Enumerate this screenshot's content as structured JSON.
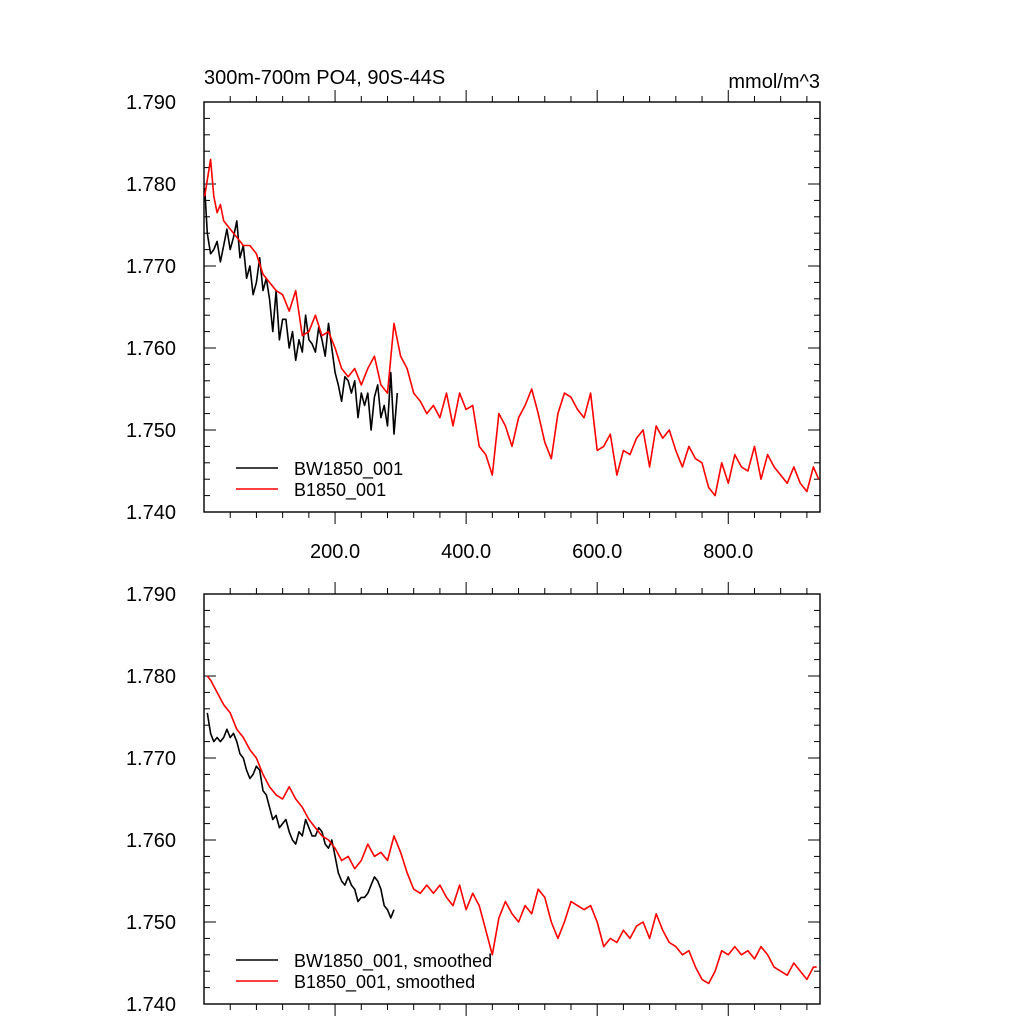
{
  "header": {
    "title_left": "300m-700m PO4, 90S-44S",
    "title_right": "mmol/m^3"
  },
  "chart_data": [
    {
      "type": "line",
      "xlim": [
        0,
        940
      ],
      "ylim": [
        1.74,
        1.79
      ],
      "y_ticks": [
        "1.790",
        "1.780",
        "1.770",
        "1.760",
        "1.750",
        "1.740"
      ],
      "x_ticks": [
        "200.0",
        "400.0",
        "600.0",
        "800.0"
      ],
      "legend_position": "bottom-left",
      "series": [
        {
          "name": "BW1850_001",
          "color": "#000000",
          "x": [
            1,
            5,
            10,
            15,
            20,
            25,
            30,
            35,
            40,
            45,
            50,
            55,
            60,
            65,
            70,
            75,
            80,
            85,
            90,
            95,
            100,
            105,
            110,
            115,
            120,
            125,
            130,
            135,
            140,
            145,
            150,
            155,
            160,
            165,
            170,
            175,
            180,
            185,
            190,
            195,
            200,
            205,
            210,
            215,
            220,
            225,
            230,
            235,
            240,
            245,
            250,
            255,
            260,
            265,
            270,
            275,
            280,
            285,
            290,
            295
          ],
          "y": [
            1.7795,
            1.774,
            1.7715,
            1.772,
            1.773,
            1.7705,
            1.7725,
            1.7745,
            1.772,
            1.7735,
            1.7755,
            1.771,
            1.7725,
            1.7685,
            1.77,
            1.7665,
            1.768,
            1.771,
            1.767,
            1.7685,
            1.766,
            1.762,
            1.767,
            1.761,
            1.7635,
            1.7635,
            1.76,
            1.762,
            1.7585,
            1.761,
            1.7595,
            1.764,
            1.761,
            1.7605,
            1.7595,
            1.7625,
            1.761,
            1.759,
            1.763,
            1.76,
            1.757,
            1.7555,
            1.7535,
            1.7565,
            1.756,
            1.7545,
            1.756,
            1.7515,
            1.7545,
            1.753,
            1.7545,
            1.75,
            1.754,
            1.7555,
            1.7515,
            1.753,
            1.7505,
            1.757,
            1.7495,
            1.7545
          ]
        },
        {
          "name": "B1850_001",
          "color": "#ff0000",
          "x": [
            1,
            5,
            10,
            15,
            20,
            25,
            30,
            40,
            50,
            60,
            70,
            80,
            90,
            100,
            110,
            120,
            130,
            140,
            150,
            160,
            170,
            180,
            190,
            200,
            210,
            220,
            230,
            240,
            250,
            260,
            270,
            280,
            290,
            300,
            310,
            320,
            330,
            340,
            350,
            360,
            370,
            380,
            390,
            400,
            410,
            420,
            430,
            440,
            450,
            460,
            470,
            480,
            490,
            500,
            510,
            520,
            530,
            540,
            550,
            560,
            570,
            580,
            590,
            600,
            610,
            620,
            630,
            640,
            650,
            660,
            670,
            680,
            690,
            700,
            710,
            720,
            730,
            740,
            750,
            760,
            770,
            780,
            790,
            800,
            810,
            820,
            830,
            840,
            850,
            860,
            870,
            880,
            890,
            900,
            910,
            920,
            930,
            938
          ],
          "y": [
            1.7785,
            1.7805,
            1.783,
            1.7785,
            1.7765,
            1.7775,
            1.7755,
            1.7745,
            1.7735,
            1.7725,
            1.7725,
            1.7715,
            1.769,
            1.768,
            1.767,
            1.7665,
            1.7645,
            1.767,
            1.7615,
            1.762,
            1.764,
            1.7615,
            1.762,
            1.76,
            1.7575,
            1.7565,
            1.7575,
            1.7555,
            1.7575,
            1.759,
            1.7555,
            1.7545,
            1.763,
            1.759,
            1.7575,
            1.7545,
            1.7535,
            1.752,
            1.753,
            1.7515,
            1.7545,
            1.7505,
            1.7545,
            1.7525,
            1.753,
            1.748,
            1.747,
            1.7445,
            1.752,
            1.7505,
            1.748,
            1.7515,
            1.753,
            1.755,
            1.752,
            1.7485,
            1.7465,
            1.752,
            1.7545,
            1.754,
            1.7525,
            1.7515,
            1.7545,
            1.7475,
            1.748,
            1.7495,
            1.7445,
            1.7475,
            1.747,
            1.749,
            1.75,
            1.7455,
            1.7505,
            1.749,
            1.75,
            1.7475,
            1.7455,
            1.748,
            1.7465,
            1.746,
            1.743,
            1.742,
            1.746,
            1.7435,
            1.747,
            1.7455,
            1.745,
            1.748,
            1.744,
            1.747,
            1.7455,
            1.7445,
            1.7435,
            1.7455,
            1.7435,
            1.7425,
            1.7455,
            1.744
          ]
        }
      ]
    },
    {
      "type": "line",
      "xlim": [
        0,
        940
      ],
      "ylim": [
        1.74,
        1.79
      ],
      "y_ticks": [
        "1.790",
        "1.780",
        "1.770",
        "1.760",
        "1.750",
        "1.740"
      ],
      "x_ticks": [],
      "legend_position": "bottom-left",
      "series": [
        {
          "name": "BW1850_001, smoothed",
          "color": "#000000",
          "x": [
            5,
            10,
            15,
            20,
            25,
            30,
            35,
            40,
            45,
            50,
            55,
            60,
            65,
            70,
            75,
            80,
            85,
            90,
            95,
            100,
            105,
            110,
            115,
            120,
            125,
            130,
            135,
            140,
            145,
            150,
            155,
            160,
            165,
            170,
            175,
            180,
            185,
            190,
            195,
            200,
            205,
            210,
            215,
            220,
            225,
            230,
            235,
            240,
            245,
            250,
            255,
            260,
            265,
            270,
            275,
            280,
            285,
            290
          ],
          "y": [
            1.7755,
            1.773,
            1.772,
            1.7725,
            1.772,
            1.7725,
            1.7735,
            1.7725,
            1.773,
            1.772,
            1.7705,
            1.77,
            1.7685,
            1.7675,
            1.768,
            1.769,
            1.7685,
            1.766,
            1.7655,
            1.764,
            1.7625,
            1.763,
            1.7615,
            1.762,
            1.7625,
            1.761,
            1.76,
            1.7595,
            1.761,
            1.7605,
            1.7625,
            1.7615,
            1.7605,
            1.7605,
            1.7615,
            1.761,
            1.7595,
            1.759,
            1.76,
            1.758,
            1.756,
            1.755,
            1.7545,
            1.7555,
            1.7545,
            1.754,
            1.7525,
            1.753,
            1.753,
            1.7535,
            1.7545,
            1.7555,
            1.755,
            1.754,
            1.752,
            1.7515,
            1.7505,
            1.7515
          ]
        },
        {
          "name": "B1850_001, smoothed",
          "color": "#ff0000",
          "x": [
            5,
            10,
            20,
            30,
            40,
            50,
            60,
            70,
            80,
            90,
            100,
            110,
            120,
            130,
            140,
            150,
            160,
            170,
            180,
            190,
            200,
            210,
            220,
            230,
            240,
            250,
            260,
            270,
            280,
            290,
            300,
            310,
            320,
            330,
            340,
            350,
            360,
            370,
            380,
            390,
            400,
            410,
            420,
            430,
            440,
            450,
            460,
            470,
            480,
            490,
            500,
            510,
            520,
            530,
            540,
            550,
            560,
            570,
            580,
            590,
            600,
            610,
            620,
            630,
            640,
            650,
            660,
            670,
            680,
            690,
            700,
            710,
            720,
            730,
            740,
            750,
            760,
            770,
            780,
            790,
            800,
            810,
            820,
            830,
            840,
            850,
            860,
            870,
            880,
            890,
            900,
            910,
            920,
            930,
            935
          ],
          "y": [
            1.78,
            1.7795,
            1.778,
            1.7765,
            1.7755,
            1.7735,
            1.7725,
            1.771,
            1.77,
            1.768,
            1.7665,
            1.7655,
            1.765,
            1.7665,
            1.765,
            1.764,
            1.7625,
            1.7615,
            1.7605,
            1.76,
            1.759,
            1.7575,
            1.758,
            1.7565,
            1.7575,
            1.7595,
            1.758,
            1.7585,
            1.7575,
            1.7605,
            1.7585,
            1.756,
            1.754,
            1.7535,
            1.7545,
            1.7535,
            1.7545,
            1.753,
            1.752,
            1.7545,
            1.7515,
            1.7535,
            1.752,
            1.749,
            1.746,
            1.7505,
            1.7525,
            1.751,
            1.75,
            1.752,
            1.751,
            1.754,
            1.753,
            1.75,
            1.748,
            1.75,
            1.7525,
            1.752,
            1.7515,
            1.752,
            1.75,
            1.747,
            1.748,
            1.7475,
            1.749,
            1.748,
            1.7495,
            1.75,
            1.748,
            1.751,
            1.749,
            1.7475,
            1.747,
            1.746,
            1.7465,
            1.7445,
            1.743,
            1.7425,
            1.744,
            1.7465,
            1.746,
            1.747,
            1.746,
            1.7465,
            1.7455,
            1.747,
            1.746,
            1.7445,
            1.744,
            1.7435,
            1.745,
            1.744,
            1.743,
            1.7445,
            1.7445
          ]
        }
      ]
    }
  ]
}
